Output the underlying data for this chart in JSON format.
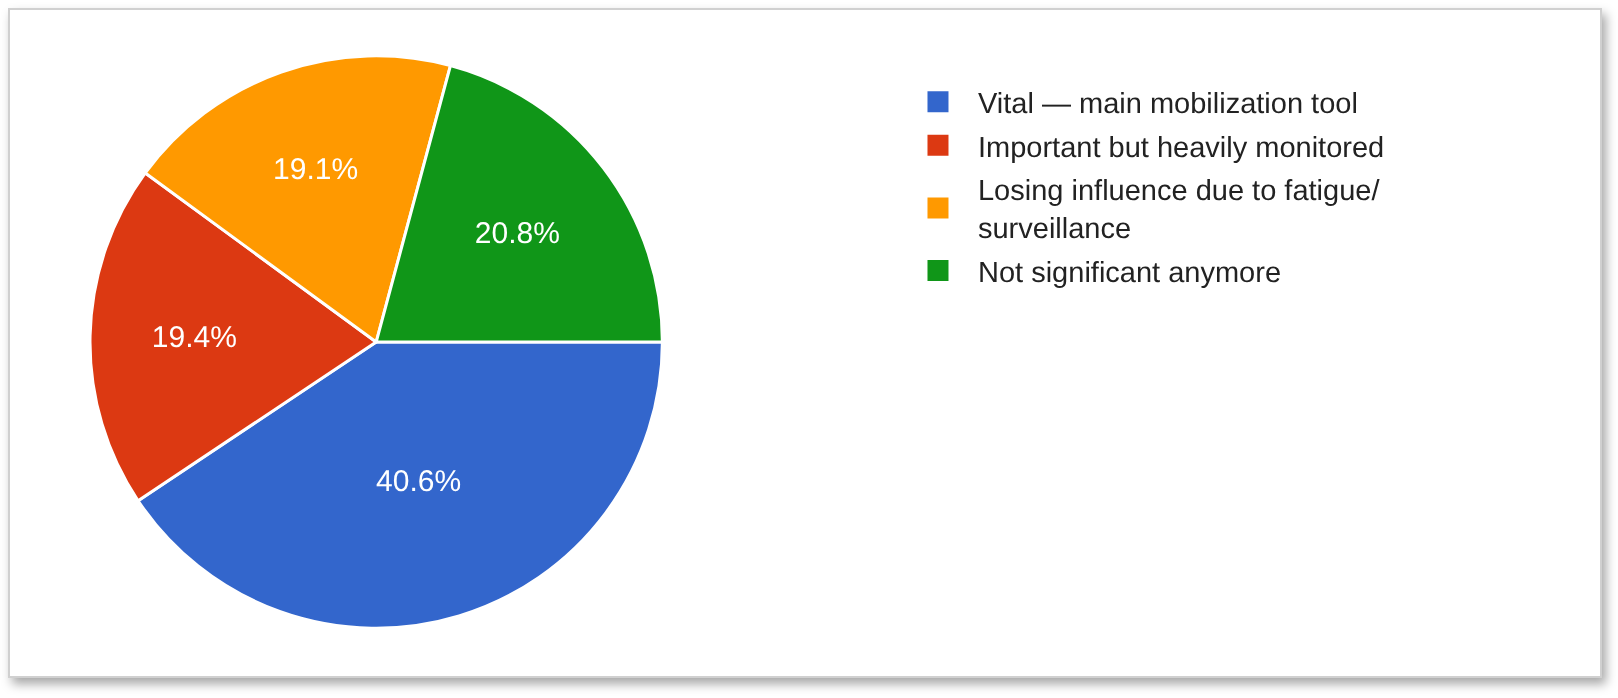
{
  "chart_data": {
    "type": "pie",
    "categories": [
      "Vital — main mobilization tool",
      "Important but heavily monitored",
      "Losing influence due to fatigue/ surveillance",
      "Not significant anymore"
    ],
    "values": [
      40.6,
      19.4,
      19.1,
      20.8
    ],
    "value_labels": [
      "40.6%",
      "19.4%",
      "19.1%",
      "20.8%"
    ],
    "colors": [
      "#3366cc",
      "#dc3912",
      "#ff9900",
      "#109618"
    ],
    "legend": "right"
  }
}
